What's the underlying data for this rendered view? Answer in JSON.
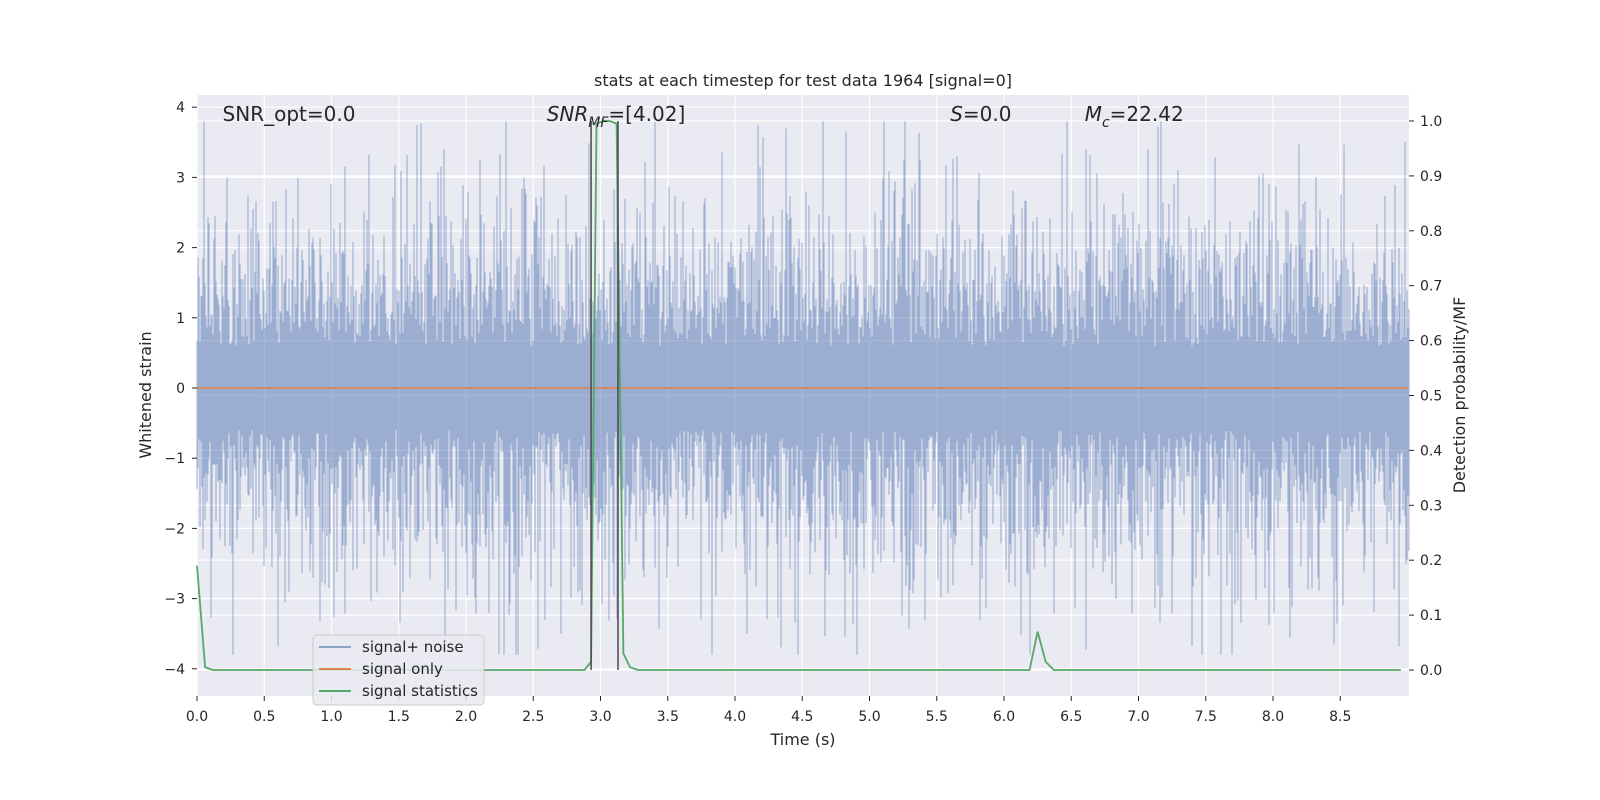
{
  "chart_data": {
    "type": "line",
    "title": "stats at each timestep for test data 1964 [signal=0]",
    "xlabel": "Time (s)",
    "ylabel_left": "Whitened strain",
    "ylabel_right": "Detection probability/MF",
    "xlim": [
      0,
      9.0
    ],
    "ylim_left": [
      -4.4,
      4.2
    ],
    "ylim_right": [
      -0.05,
      1.04
    ],
    "x_ticks": [
      "0.0",
      "0.5",
      "1.0",
      "1.5",
      "2.0",
      "2.5",
      "3.0",
      "3.5",
      "4.0",
      "4.5",
      "5.0",
      "5.5",
      "6.0",
      "6.5",
      "7.0",
      "7.5",
      "8.0",
      "8.5"
    ],
    "y_left_ticks": [
      "−4",
      "−3",
      "−2",
      "−1",
      "0",
      "1",
      "2",
      "3",
      "4"
    ],
    "y_right_ticks": [
      "0.0",
      "0.1",
      "0.2",
      "0.3",
      "0.4",
      "0.5",
      "0.6",
      "0.7",
      "0.8",
      "0.9",
      "1.0"
    ],
    "grid": true,
    "background": "#eaeaf2",
    "annotations": [
      {
        "id": "snr-opt",
        "text": "SNR_opt=0.0",
        "x": 0.19,
        "y": 3.9
      },
      {
        "id": "snr-mf",
        "text": "=[4.02]",
        "base": "SNR",
        "sub": "MF",
        "x": 2.6,
        "y": 3.9
      },
      {
        "id": "s-stat",
        "text": "=0.0",
        "base": "S",
        "x": 5.6,
        "y": 3.9
      },
      {
        "id": "mc",
        "text": "=22.42",
        "base": "M",
        "sub": "c",
        "x": 6.6,
        "y": 3.9
      }
    ],
    "vlines": [
      2.93,
      3.13
    ],
    "legend": {
      "position": "lower-left",
      "entries": [
        "signal+ noise",
        "signal only",
        "signal statistics"
      ]
    },
    "series": [
      {
        "name": "signal+ noise",
        "axis": "left",
        "color": "#4c72b0",
        "kind": "noise",
        "std": 1.2,
        "amp_max": 3.8
      },
      {
        "name": "signal only",
        "axis": "left",
        "color": "#dd8452",
        "x": [
          0,
          9.0
        ],
        "y": [
          0,
          0
        ]
      },
      {
        "name": "signal statistics",
        "axis": "right",
        "color": "#55a868",
        "x": [
          0.0,
          0.06,
          0.12,
          2.88,
          2.93,
          2.97,
          3.02,
          3.07,
          3.12,
          3.17,
          3.22,
          3.28,
          6.19,
          6.25,
          6.31,
          6.37,
          8.95
        ],
        "y": [
          0.19,
          0.005,
          0.0,
          0.0,
          0.015,
          0.995,
          1.0,
          1.0,
          0.995,
          0.03,
          0.005,
          0.0,
          0.0,
          0.07,
          0.015,
          0.0,
          0.0
        ]
      }
    ]
  }
}
